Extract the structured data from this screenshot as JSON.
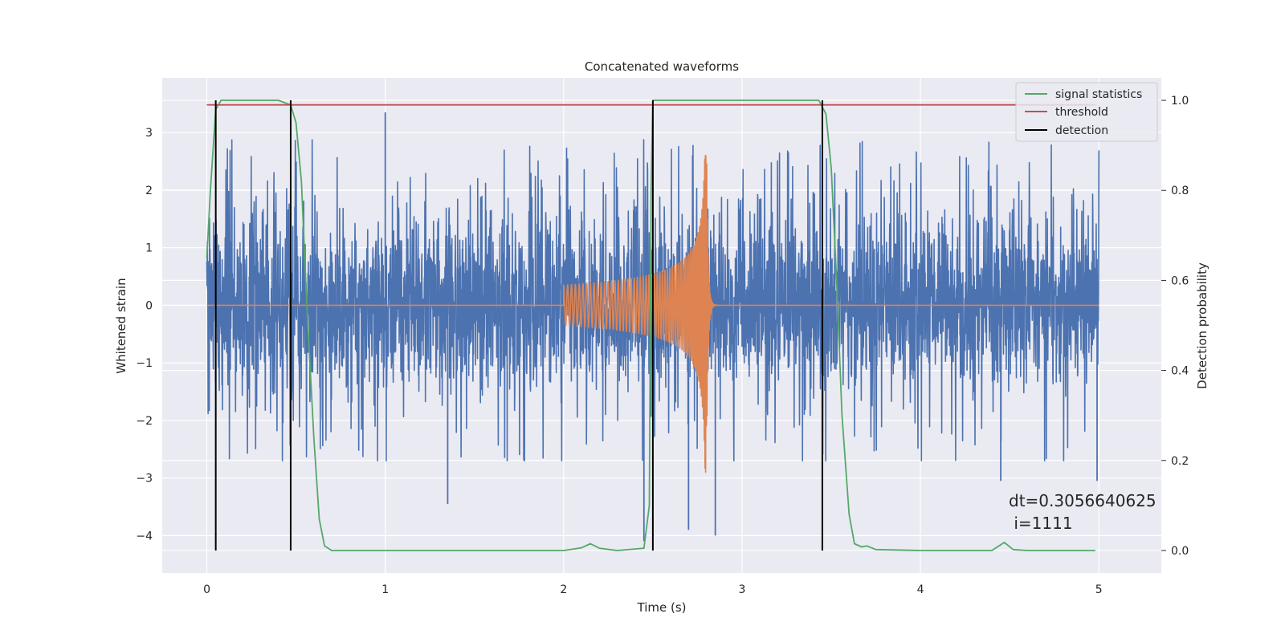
{
  "chart_data": {
    "type": "line",
    "title": "Concatenated waveforms",
    "xlabel": "Time (s)",
    "ylabel": "Whitened strain",
    "y2label": "Detection probability",
    "xlim": [
      -0.25,
      5.35
    ],
    "ylim": [
      -4.65,
      3.95
    ],
    "y2lim": [
      -0.05,
      1.05
    ],
    "x_ticks": [
      0,
      1,
      2,
      3,
      4,
      5
    ],
    "x_tick_labels": [
      "0",
      "1",
      "2",
      "3",
      "4",
      "5"
    ],
    "y_ticks": [
      3,
      2,
      1,
      0,
      -1,
      -2,
      -3,
      -4
    ],
    "y_tick_labels": [
      "3",
      "2",
      "1",
      "0",
      "−1",
      "−2",
      "−3",
      "−4"
    ],
    "y2_ticks": [
      1.0,
      0.8,
      0.6,
      0.4,
      0.2,
      0.0
    ],
    "y2_tick_labels": [
      "1.0",
      "0.8",
      "0.6",
      "0.4",
      "0.2",
      "0.0"
    ],
    "grid": true,
    "legend_position": "top-right",
    "noise": {
      "x_range": [
        0,
        5
      ],
      "typical_range": [
        -2.7,
        3.3
      ],
      "peaks": [
        {
          "x": 1.0,
          "y": 3.35
        },
        {
          "x": 2.45,
          "y": -4.1
        },
        {
          "x": 2.7,
          "y": -3.9
        },
        {
          "x": 2.85,
          "y": -4.0
        },
        {
          "x": 1.35,
          "y": -3.45
        },
        {
          "x": 4.45,
          "y": -3.05
        },
        {
          "x": 4.99,
          "y": -3.05
        }
      ],
      "color": "#4c72b0"
    },
    "chirp": {
      "x_start": 2.0,
      "x_merger": 2.8,
      "x_end": 3.0,
      "peak_amplitude": [
        2.6,
        -3.15
      ],
      "color": "#dd8452"
    },
    "series": [
      {
        "name": "signal statistics",
        "axis": "right",
        "color": "#55a868",
        "x": [
          0.0,
          0.02,
          0.05,
          0.08,
          0.12,
          0.2,
          0.4,
          0.47,
          0.5,
          0.53,
          0.56,
          0.6,
          0.63,
          0.66,
          0.7,
          0.8,
          1.0,
          1.5,
          2.0,
          2.1,
          2.15,
          2.2,
          2.3,
          2.45,
          2.48,
          2.49,
          2.5,
          2.52,
          3.0,
          3.43,
          3.47,
          3.5,
          3.53,
          3.56,
          3.6,
          3.63,
          3.67,
          3.7,
          3.75,
          4.0,
          4.4,
          4.47,
          4.52,
          4.6,
          4.98
        ],
        "y": [
          0.65,
          0.8,
          0.98,
          1.0,
          1.0,
          1.0,
          1.0,
          0.99,
          0.95,
          0.82,
          0.55,
          0.25,
          0.07,
          0.01,
          0.0,
          0.0,
          0.0,
          0.0,
          0.0,
          0.006,
          0.015,
          0.005,
          0.0,
          0.005,
          0.1,
          0.8,
          1.0,
          1.0,
          1.0,
          1.0,
          0.97,
          0.85,
          0.6,
          0.3,
          0.08,
          0.015,
          0.008,
          0.01,
          0.002,
          0.0,
          0.0,
          0.018,
          0.002,
          0.0,
          0.0
        ]
      },
      {
        "name": "threshold",
        "axis": "right",
        "color": "#c44e52",
        "x": [
          0.0,
          4.98
        ],
        "y": [
          0.99,
          0.99
        ]
      },
      {
        "name": "detection",
        "axis": "right",
        "color": "#000000",
        "vlines": [
          0.05,
          0.47,
          2.5,
          3.45
        ],
        "y_range": [
          0.0,
          1.0
        ]
      }
    ],
    "annotation": {
      "line1": "dt=0.3056640625",
      "line2": " i=1111"
    }
  }
}
